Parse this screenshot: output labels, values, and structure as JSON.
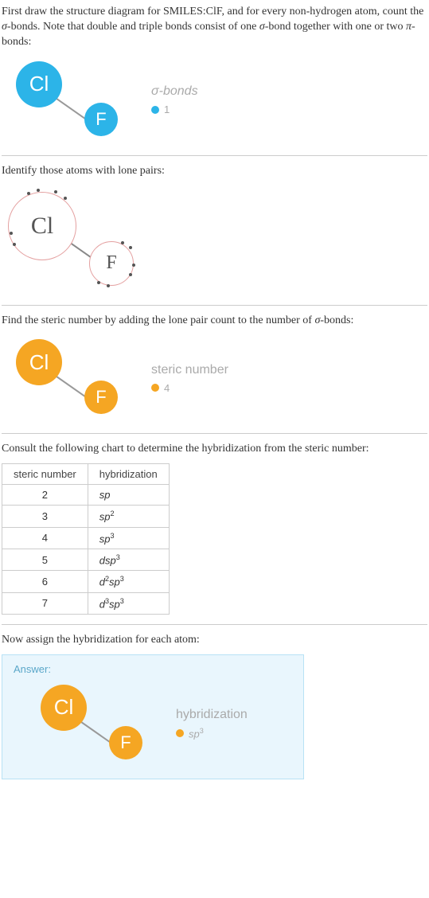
{
  "intro": {
    "text_pre": "First draw the structure diagram for SMILES:ClF, and for every non-hydrogen atom, count the ",
    "sigma": "σ",
    "text_mid": "-bonds.  Note that double and triple bonds consist of one ",
    "text_mid2": "-bond together with one or two ",
    "pi": "π",
    "text_end": "-bonds:"
  },
  "sigma_diagram": {
    "cl_label": "Cl",
    "f_label": "F",
    "cl_color": "#2cb4e8",
    "f_color": "#2cb4e8",
    "cl_size": 58,
    "f_size": 42,
    "cl_fontsize": 26,
    "f_fontsize": 22,
    "text_color": "#ffffff",
    "legend_title": "σ-bonds",
    "legend_dot_color": "#2cb4e8",
    "legend_value": "1"
  },
  "lonepair_section": {
    "text": "Identify those atoms with lone pairs:",
    "cl_label": "Cl",
    "f_label": "F",
    "cl_border": "#e4a0a0",
    "f_border": "#e4a0a0",
    "cl_size": 86,
    "f_size": 56,
    "cl_fontsize": 30,
    "f_fontsize": 24,
    "text_color": "#555555"
  },
  "steric_section": {
    "text_pre": "Find the steric number by adding the lone pair count to the number of ",
    "sigma": "σ",
    "text_end": "-bonds:",
    "cl_label": "Cl",
    "f_label": "F",
    "cl_color": "#f5a623",
    "f_color": "#f5a623",
    "cl_size": 58,
    "f_size": 42,
    "cl_fontsize": 26,
    "f_fontsize": 22,
    "text_color": "#ffffff",
    "legend_title": "steric number",
    "legend_dot_color": "#f5a623",
    "legend_value": "4"
  },
  "table_section": {
    "text": "Consult the following chart to determine the hybridization from the steric number:",
    "headers": [
      "steric number",
      "hybridization"
    ],
    "rows": [
      {
        "n": "2",
        "h": "sp",
        "sup": ""
      },
      {
        "n": "3",
        "h": "sp",
        "sup": "2"
      },
      {
        "n": "4",
        "h": "sp",
        "sup": "3"
      },
      {
        "n": "5",
        "h": "dsp",
        "sup": "3"
      },
      {
        "n": "6",
        "h": "d",
        "mid": "2",
        "h2": "sp",
        "sup": "3"
      },
      {
        "n": "7",
        "h": "d",
        "mid": "3",
        "h2": "sp",
        "sup": "3"
      }
    ]
  },
  "answer_section": {
    "text": "Now assign the hybridization for each atom:",
    "label": "Answer:",
    "cl_label": "Cl",
    "f_label": "F",
    "cl_color": "#f5a623",
    "f_color": "#f5a623",
    "cl_size": 58,
    "f_size": 42,
    "cl_fontsize": 26,
    "f_fontsize": 22,
    "text_color": "#ffffff",
    "legend_title": "hybridization",
    "legend_dot_color": "#f5a623",
    "legend_value_base": "sp",
    "legend_value_sup": "3"
  }
}
